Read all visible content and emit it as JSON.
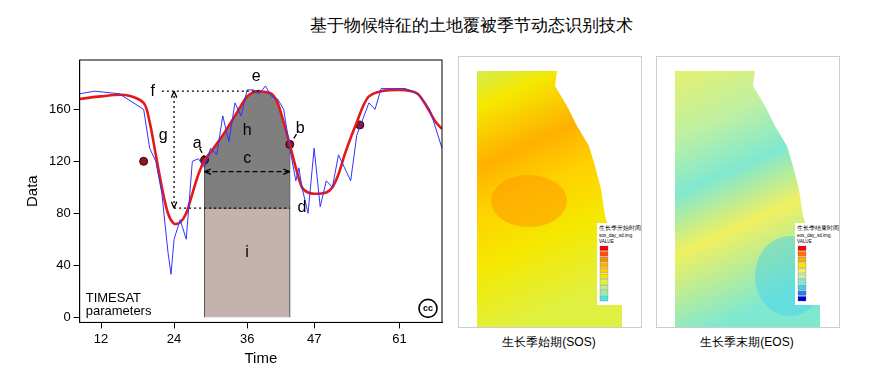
{
  "title": "基于物候特征的土地覆被季节动态识别技术",
  "chart_data": {
    "type": "line",
    "x_label": "Time",
    "y_label": "Data",
    "xlim": [
      8.5,
      68
    ],
    "xticks": [
      12,
      24,
      36,
      47,
      61
    ],
    "ylim": [
      -4,
      198
    ],
    "yticks": [
      0,
      40,
      80,
      120,
      160
    ],
    "grid": false,
    "series": [
      {
        "color": "#3333ff",
        "line_style": "solid",
        "marker": "none",
        "x": [
          8.5,
          11,
          15,
          19,
          20,
          21,
          22,
          23,
          23.5,
          24,
          25,
          26,
          27,
          28,
          29,
          30,
          31,
          32,
          33,
          34,
          35,
          36,
          37,
          38,
          39,
          40,
          41,
          42,
          43,
          44,
          44.5,
          45,
          46,
          47,
          48,
          49,
          50,
          51,
          52,
          53,
          54,
          56,
          57,
          58,
          62,
          64,
          66,
          68
        ],
        "values": [
          172,
          174,
          172,
          160,
          130,
          120,
          95,
          50,
          33,
          60,
          75,
          60,
          120,
          122,
          115,
          130,
          125,
          155,
          135,
          165,
          155,
          175,
          175,
          172,
          178,
          170,
          168,
          160,
          130,
          105,
          115,
          100,
          80,
          130,
          85,
          105,
          100,
          125,
          115,
          105,
          140,
          165,
          160,
          176,
          176,
          172,
          160,
          130
        ]
      },
      {
        "color": "#e31a1c",
        "line_style": "thick",
        "marker": "none",
        "x": [
          8.5,
          12,
          16,
          19,
          20,
          21,
          22,
          23,
          24,
          25,
          26,
          27,
          28,
          29,
          30,
          32,
          34,
          36,
          37,
          38,
          40,
          41,
          42,
          43,
          44,
          45,
          46,
          47,
          49,
          50,
          51,
          52,
          53,
          54,
          55,
          56,
          58,
          61,
          63,
          64,
          65,
          66,
          67,
          68
        ],
        "values": [
          168,
          170,
          171,
          165,
          150,
          125,
          100,
          80,
          72,
          73,
          80,
          95,
          110,
          121,
          127,
          140,
          155,
          170,
          173,
          174,
          172,
          165,
          150,
          133,
          115,
          100,
          96,
          95,
          96,
          100,
          110,
          125,
          138,
          150,
          162,
          170,
          174,
          175,
          174,
          172,
          166,
          158,
          150,
          145
        ]
      },
      {
        "color": "#8b1a1a",
        "line_style": "none",
        "marker": "circle",
        "x": [
          19,
          29,
          43,
          54.5
        ],
        "values": [
          120,
          121,
          133,
          148
        ]
      }
    ],
    "areas": [
      {
        "label": "h",
        "color": "#7f7f7f",
        "base": 84,
        "x": [
          29,
          30,
          32,
          34,
          36,
          37,
          38,
          40,
          41,
          42,
          43
        ],
        "values": [
          121,
          127,
          140,
          155,
          170,
          173,
          174,
          172,
          165,
          150,
          133
        ]
      },
      {
        "label": "i",
        "color": "#c4b2ae",
        "base": 0,
        "x": [
          29,
          43
        ],
        "values": [
          84,
          84
        ]
      }
    ],
    "guides": [
      {
        "x": [
          22,
          38
        ],
        "y": [
          174,
          174
        ],
        "line_style": "dotted",
        "arrow": "none"
      },
      {
        "x": [
          24,
          24
        ],
        "y": [
          84,
          174
        ],
        "line_style": "dotted",
        "arrow": "both"
      },
      {
        "x": [
          29,
          43
        ],
        "y": [
          112,
          112
        ],
        "line_style": "dashed",
        "arrow": "both"
      },
      {
        "x": [
          24,
          43
        ],
        "y": [
          84,
          84
        ],
        "line_style": "dotted",
        "arrow": "none"
      },
      {
        "x": [
          28.2,
          29
        ],
        "y": [
          130,
          123
        ],
        "line_style": "dashed",
        "arrow": "none"
      },
      {
        "x": [
          44.1,
          43.3
        ],
        "y": [
          141,
          135
        ],
        "line_style": "dashed",
        "arrow": "none"
      }
    ],
    "annotations": [
      {
        "text": "f",
        "x": 20.5,
        "y": 174
      },
      {
        "text": "e",
        "x": 37.5,
        "y": 185
      },
      {
        "text": "g",
        "x": 22.2,
        "y": 140
      },
      {
        "text": "a",
        "x": 27.8,
        "y": 134
      },
      {
        "text": "b",
        "x": 44.7,
        "y": 145
      },
      {
        "text": "h",
        "x": 36,
        "y": 144
      },
      {
        "text": "c",
        "x": 36,
        "y": 122
      },
      {
        "text": "d",
        "x": 45,
        "y": 84
      },
      {
        "text": "i",
        "x": 36,
        "y": 50
      }
    ],
    "corner_text": [
      "TIMESAT",
      "parameters"
    ],
    "badge": "cc"
  },
  "maps": [
    {
      "caption": "生长季始期(SOS)",
      "legend_title": "生长季开始时间",
      "legend_subtitle": "sos_day_sd.img",
      "legend_field": "VALUE",
      "colors": [
        "#ff0000",
        "#ff5000",
        "#ff8c00",
        "#ffb000",
        "#ffd000",
        "#f5e800",
        "#e0f040",
        "#c0f080",
        "#90f0b0",
        "#40e8e8"
      ]
    },
    {
      "caption": "生长季末期(EOS)",
      "legend_title": "生长季结束时间",
      "legend_subtitle": "eos_day_sd.img",
      "legend_field": "VALUE",
      "colors": [
        "#ff0000",
        "#ff7000",
        "#ffb000",
        "#ffe000",
        "#f0f060",
        "#c0f0a0",
        "#80e8d0",
        "#40d0f0",
        "#2080f0",
        "#0000d0"
      ]
    }
  ]
}
